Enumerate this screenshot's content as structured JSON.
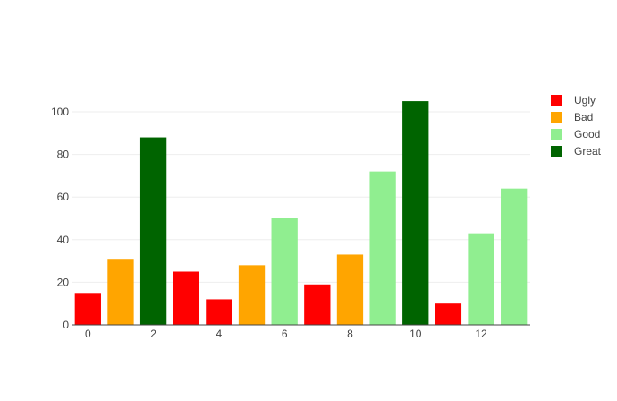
{
  "chart_data": {
    "type": "bar",
    "x": [
      0,
      1,
      2,
      3,
      4,
      5,
      6,
      7,
      8,
      9,
      10,
      11,
      12,
      13
    ],
    "values": [
      15,
      31,
      88,
      25,
      12,
      28,
      50,
      19,
      33,
      72,
      105,
      10,
      43,
      64
    ],
    "category_per_bar": [
      "Ugly",
      "Bad",
      "Great",
      "Ugly",
      "Ugly",
      "Bad",
      "Good",
      "Ugly",
      "Bad",
      "Good",
      "Great",
      "Ugly",
      "Good",
      "Good"
    ],
    "legend": [
      {
        "name": "Ugly",
        "color": "#ff0000"
      },
      {
        "name": "Bad",
        "color": "#ffa500"
      },
      {
        "name": "Good",
        "color": "#90ee90"
      },
      {
        "name": "Great",
        "color": "#006400"
      }
    ],
    "xticks": [
      0,
      2,
      4,
      6,
      8,
      10,
      12
    ],
    "yticks": [
      0,
      20,
      40,
      60,
      80,
      100
    ],
    "xlim": [
      -0.5,
      13.5
    ],
    "ylim": [
      0,
      110.5
    ],
    "grid": true,
    "legend_position": "top-right",
    "title": "",
    "xlabel": "",
    "ylabel": ""
  }
}
